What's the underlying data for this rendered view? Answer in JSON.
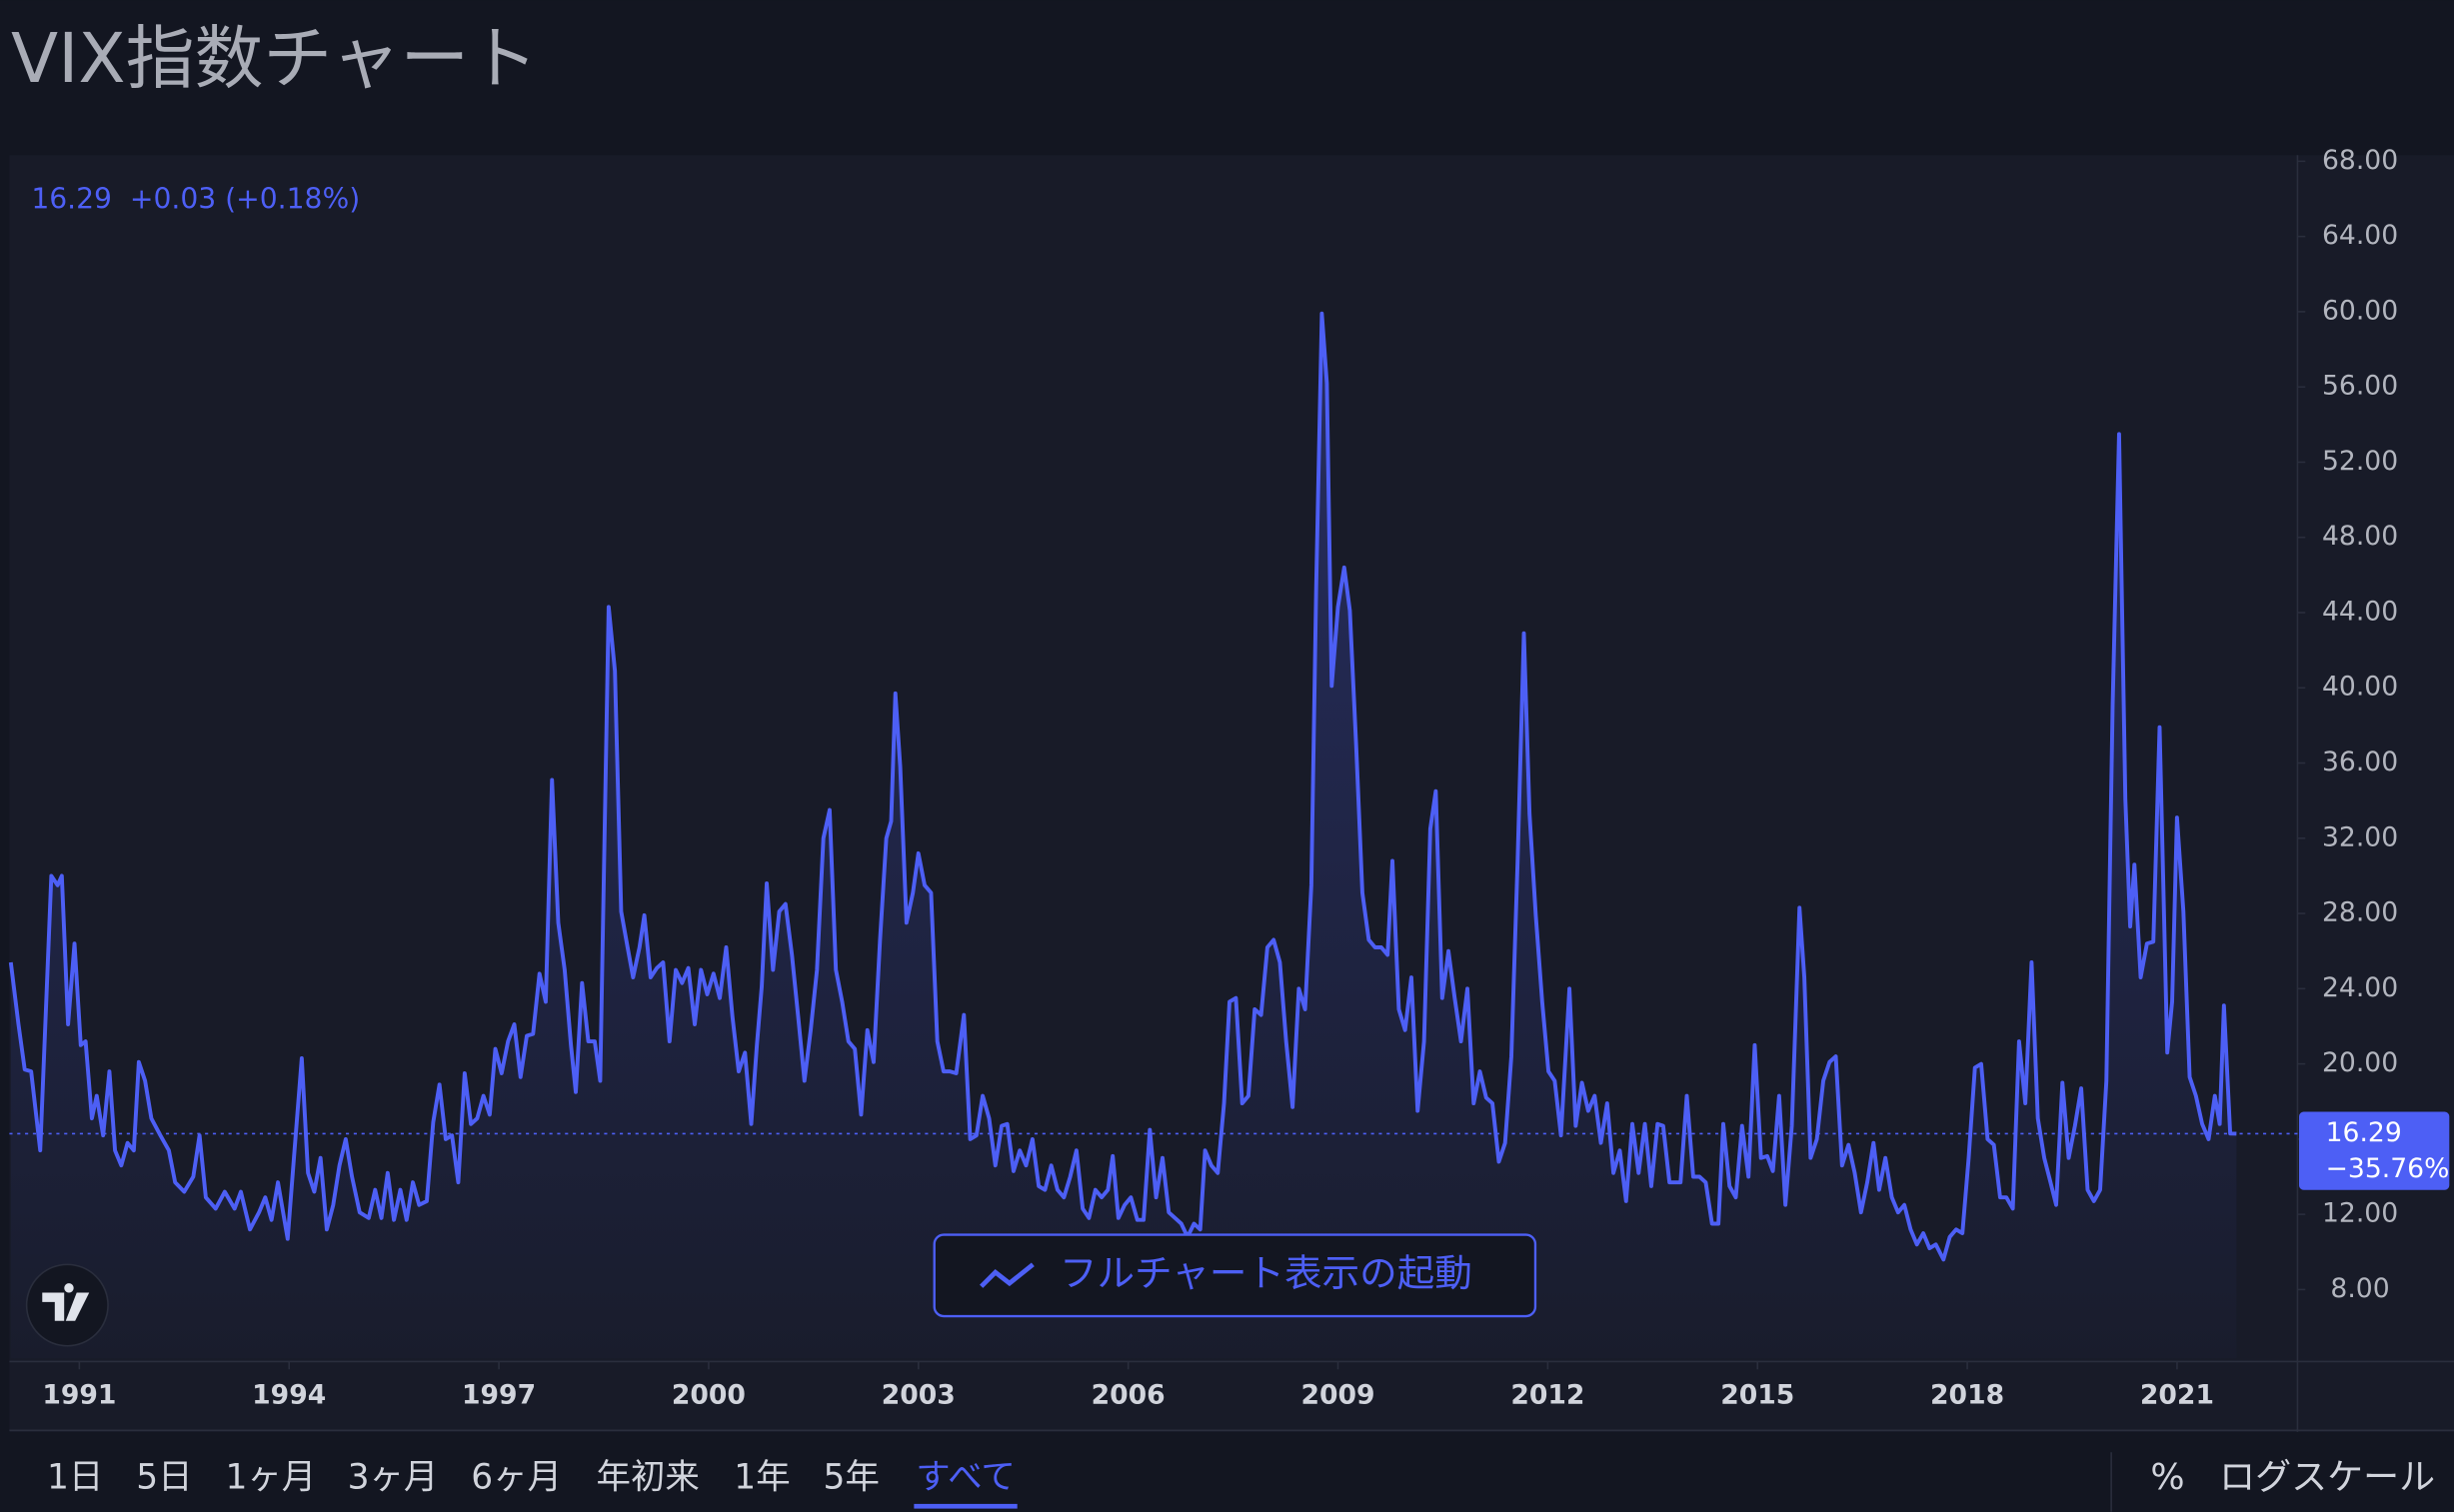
{
  "page_title": "VIX指数チャート",
  "chart_data": {
    "type": "line",
    "header_quote": "16.29  +0.03 (+0.18%)",
    "x": [
      1990.02,
      1990.13,
      1990.22,
      1990.31,
      1990.44,
      1990.6,
      1990.69,
      1990.75,
      1990.84,
      1990.93,
      1991.02,
      1991.09,
      1991.18,
      1991.25,
      1991.34,
      1991.43,
      1991.51,
      1991.6,
      1991.69,
      1991.78,
      1991.85,
      1991.94,
      1992.03,
      1992.16,
      1992.28,
      1992.37,
      1992.5,
      1992.63,
      1992.72,
      1992.81,
      1992.95,
      1993.08,
      1993.22,
      1993.31,
      1993.44,
      1993.57,
      1993.66,
      1993.75,
      1993.84,
      1993.98,
      1994.07,
      1994.18,
      1994.27,
      1994.36,
      1994.45,
      1994.54,
      1994.63,
      1994.72,
      1994.81,
      1994.9,
      1995.01,
      1995.14,
      1995.23,
      1995.32,
      1995.41,
      1995.5,
      1995.59,
      1995.68,
      1995.77,
      1995.86,
      1995.97,
      1996.06,
      1996.15,
      1996.24,
      1996.33,
      1996.42,
      1996.51,
      1996.6,
      1996.69,
      1996.78,
      1996.87,
      1996.95,
      1997.04,
      1997.13,
      1997.22,
      1997.31,
      1997.4,
      1997.49,
      1997.58,
      1997.67,
      1997.76,
      1997.85,
      1997.94,
      1998.03,
      1998.1,
      1998.19,
      1998.28,
      1998.37,
      1998.45,
      1998.57,
      1998.66,
      1998.75,
      1998.84,
      1998.92,
      1999.01,
      1999.08,
      1999.17,
      1999.26,
      1999.35,
      1999.44,
      1999.53,
      1999.62,
      1999.71,
      1999.8,
      1999.89,
      1999.98,
      2000.07,
      2000.16,
      2000.25,
      2000.34,
      2000.43,
      2000.52,
      2000.61,
      2000.69,
      2000.76,
      2000.83,
      2000.92,
      2001.01,
      2001.1,
      2001.19,
      2001.28,
      2001.37,
      2001.46,
      2001.55,
      2001.64,
      2001.73,
      2001.82,
      2001.91,
      2002.0,
      2002.09,
      2002.18,
      2002.27,
      2002.36,
      2002.45,
      2002.54,
      2002.61,
      2002.67,
      2002.74,
      2002.83,
      2002.92,
      2003.0,
      2003.09,
      2003.18,
      2003.27,
      2003.36,
      2003.45,
      2003.54,
      2003.65,
      2003.74,
      2003.83,
      2003.92,
      2004.01,
      2004.1,
      2004.19,
      2004.27,
      2004.36,
      2004.45,
      2004.54,
      2004.63,
      2004.72,
      2004.81,
      2004.9,
      2004.99,
      2005.08,
      2005.17,
      2005.26,
      2005.35,
      2005.44,
      2005.53,
      2005.62,
      2005.71,
      2005.78,
      2005.86,
      2005.95,
      2006.04,
      2006.13,
      2006.22,
      2006.31,
      2006.4,
      2006.49,
      2006.58,
      2006.67,
      2006.76,
      2006.85,
      2006.94,
      2007.03,
      2007.1,
      2007.19,
      2007.28,
      2007.37,
      2007.45,
      2007.54,
      2007.63,
      2007.72,
      2007.81,
      2007.9,
      2007.99,
      2008.08,
      2008.17,
      2008.26,
      2008.35,
      2008.44,
      2008.53,
      2008.62,
      2008.69,
      2008.77,
      2008.84,
      2008.91,
      2009.0,
      2009.09,
      2009.17,
      2009.26,
      2009.35,
      2009.44,
      2009.53,
      2009.62,
      2009.71,
      2009.78,
      2009.87,
      2009.96,
      2010.05,
      2010.14,
      2010.23,
      2010.32,
      2010.4,
      2010.49,
      2010.58,
      2010.67,
      2010.76,
      2010.85,
      2010.94,
      2011.03,
      2011.12,
      2011.21,
      2011.3,
      2011.39,
      2011.48,
      2011.57,
      2011.66,
      2011.74,
      2011.83,
      2011.92,
      2012.01,
      2012.1,
      2012.19,
      2012.31,
      2012.4,
      2012.49,
      2012.58,
      2012.67,
      2012.76,
      2012.85,
      2012.94,
      2013.03,
      2013.12,
      2013.21,
      2013.3,
      2013.39,
      2013.48,
      2013.57,
      2013.65,
      2013.74,
      2013.83,
      2013.9,
      2013.99,
      2014.08,
      2014.17,
      2014.26,
      2014.35,
      2014.44,
      2014.51,
      2014.6,
      2014.69,
      2014.78,
      2014.87,
      2014.96,
      2015.05,
      2015.14,
      2015.22,
      2015.31,
      2015.4,
      2015.49,
      2015.6,
      2015.67,
      2015.76,
      2015.85,
      2015.94,
      2016.03,
      2016.12,
      2016.21,
      2016.3,
      2016.39,
      2016.48,
      2016.57,
      2016.66,
      2016.74,
      2016.83,
      2016.92,
      2017.01,
      2017.1,
      2017.19,
      2017.28,
      2017.37,
      2017.46,
      2017.55,
      2017.66,
      2017.75,
      2017.84,
      2017.93,
      2018.02,
      2018.11,
      2018.2,
      2018.29,
      2018.38,
      2018.47,
      2018.56,
      2018.65,
      2018.74,
      2018.83,
      2018.92,
      2019.01,
      2019.1,
      2019.19,
      2019.27,
      2019.36,
      2019.45,
      2019.54,
      2019.63,
      2019.72,
      2019.81,
      2019.9,
      2019.99,
      2020.08,
      2020.17,
      2020.26,
      2020.33,
      2020.39,
      2020.48,
      2020.57,
      2020.66,
      2020.75,
      2020.86,
      2020.93,
      2021.0,
      2021.09,
      2021.18,
      2021.27,
      2021.36,
      2021.45,
      2021.54,
      2021.61,
      2021.67,
      2021.76,
      2021.85
    ],
    "series": [
      {
        "color": "#4d5ff5",
        "values": [
          25.4,
          22.1,
          19.7,
          19.6,
          15.4,
          30.0,
          29.5,
          30.0,
          22.1,
          26.4,
          21.0,
          21.2,
          17.1,
          18.3,
          16.2,
          19.6,
          15.4,
          14.6,
          15.8,
          15.4,
          20.1,
          19.1,
          17.1,
          16.2,
          15.4,
          13.7,
          13.2,
          14.0,
          16.2,
          12.9,
          12.3,
          13.2,
          12.3,
          13.2,
          11.2,
          12.1,
          12.9,
          11.7,
          13.7,
          10.7,
          15.0,
          20.3,
          14.2,
          13.2,
          15.0,
          11.2,
          12.5,
          14.6,
          16.0,
          14.0,
          12.1,
          11.8,
          13.3,
          11.8,
          14.2,
          11.7,
          13.3,
          11.7,
          13.7,
          12.5,
          12.7,
          16.9,
          18.9,
          16.0,
          16.2,
          13.7,
          19.5,
          16.8,
          17.1,
          18.3,
          17.3,
          20.8,
          19.5,
          21.2,
          22.1,
          19.3,
          21.5,
          21.6,
          24.8,
          23.3,
          35.1,
          27.5,
          25.0,
          21.0,
          18.5,
          24.3,
          21.2,
          21.2,
          19.1,
          44.3,
          40.9,
          28.1,
          26.2,
          24.6,
          26.2,
          27.9,
          24.6,
          25.1,
          25.4,
          21.2,
          25.0,
          24.3,
          25.1,
          22.1,
          25.0,
          23.7,
          24.8,
          23.5,
          26.2,
          22.5,
          19.6,
          20.6,
          16.8,
          21.0,
          24.1,
          29.6,
          25.0,
          28.1,
          28.5,
          25.8,
          22.5,
          19.1,
          21.8,
          25.0,
          32.0,
          33.5,
          25.0,
          23.3,
          21.2,
          20.8,
          17.3,
          21.8,
          20.1,
          26.6,
          32.0,
          32.9,
          39.7,
          35.8,
          27.5,
          29.1,
          31.2,
          29.5,
          29.1,
          21.2,
          19.6,
          19.6,
          19.5,
          22.6,
          16.0,
          16.2,
          18.3,
          17.1,
          14.6,
          16.7,
          16.8,
          14.3,
          15.4,
          14.6,
          16.0,
          13.5,
          13.3,
          14.6,
          13.3,
          12.9,
          14.0,
          15.4,
          12.3,
          11.8,
          13.3,
          12.9,
          13.3,
          15.1,
          11.8,
          12.5,
          12.9,
          11.7,
          11.7,
          16.5,
          12.9,
          15.0,
          12.1,
          11.8,
          11.5,
          10.8,
          11.5,
          11.2,
          15.4,
          14.6,
          14.2,
          17.9,
          23.3,
          23.5,
          17.9,
          18.3,
          22.9,
          22.6,
          26.2,
          26.6,
          25.4,
          21.2,
          17.7,
          24.0,
          22.9,
          29.5,
          45.4,
          59.9,
          56.2,
          40.1,
          44.3,
          46.4,
          44.1,
          37.0,
          29.1,
          26.6,
          26.2,
          26.2,
          25.8,
          30.8,
          22.9,
          21.8,
          24.6,
          17.5,
          21.2,
          32.5,
          34.5,
          23.5,
          26.0,
          23.5,
          21.2,
          24.0,
          17.9,
          19.6,
          18.2,
          17.9,
          14.8,
          15.8,
          20.4,
          30.8,
          42.9,
          33.3,
          27.9,
          23.3,
          19.6,
          19.1,
          16.2,
          24.0,
          16.7,
          19.0,
          17.5,
          18.3,
          15.8,
          17.9,
          14.2,
          15.4,
          12.7,
          16.8,
          14.2,
          16.8,
          13.5,
          16.8,
          16.7,
          13.7,
          13.7,
          13.7,
          18.3,
          14.0,
          14.0,
          13.7,
          11.5,
          11.5,
          16.8,
          13.5,
          12.9,
          16.7,
          14.0,
          21.0,
          15.0,
          15.1,
          14.3,
          18.3,
          12.5,
          16.7,
          28.3,
          24.6,
          15.0,
          16.0,
          19.1,
          20.1,
          20.4,
          14.6,
          15.7,
          14.2,
          12.1,
          13.7,
          15.8,
          13.3,
          15.0,
          12.9,
          12.1,
          12.5,
          11.2,
          10.4,
          11.0,
          10.2,
          10.4,
          9.6,
          10.8,
          11.2,
          11.0,
          15.0,
          19.8,
          20.0,
          16.0,
          15.7,
          12.9,
          12.9,
          12.3,
          21.2,
          17.9,
          25.4,
          17.1,
          15.0,
          13.7,
          12.5,
          19.0,
          15.0,
          16.7,
          18.7,
          13.3,
          12.7,
          13.3,
          19.1,
          39.1,
          53.5,
          34.1,
          27.3,
          30.6,
          24.6,
          26.4,
          26.5,
          37.9,
          20.6,
          23.3,
          33.1,
          28.1,
          19.3,
          18.3,
          16.8,
          16.0,
          18.3,
          16.8,
          23.1,
          16.3,
          16.29
        ]
      }
    ],
    "last_price": 16.29,
    "last_change": "−35.76%",
    "xlim": [
      1990,
      2022.7
    ],
    "xticks": [
      1991,
      1994,
      1997,
      2000,
      2003,
      2006,
      2009,
      2012,
      2015,
      2018,
      2021
    ],
    "ylim": [
      4.34,
      68.24
    ],
    "yticks": [
      {
        "value": 8,
        "label": "8.00"
      },
      {
        "value": 12,
        "label": "12.00"
      },
      {
        "value": 16,
        "label": "16.00"
      },
      {
        "value": 20,
        "label": "20.00"
      },
      {
        "value": 24,
        "label": "24.00"
      },
      {
        "value": 28,
        "label": "28.00"
      },
      {
        "value": 32,
        "label": "32.00"
      },
      {
        "value": 36,
        "label": "36.00"
      },
      {
        "value": 40,
        "label": "40.00"
      },
      {
        "value": 44,
        "label": "44.00"
      },
      {
        "value": 48,
        "label": "48.00"
      },
      {
        "value": 52,
        "label": "52.00"
      },
      {
        "value": 56,
        "label": "56.00"
      },
      {
        "value": 60,
        "label": "60.00"
      },
      {
        "value": 64,
        "label": "64.00"
      },
      {
        "value": 68,
        "label": "68.00"
      }
    ],
    "grid": false
  },
  "full_chart_button": "フルチャート表示の起動",
  "range_buttons": [
    "1日",
    "5日",
    "1ヶ月",
    "3ヶ月",
    "6ヶ月",
    "年初来",
    "1年",
    "5年",
    "すべて"
  ],
  "selected_range": 8,
  "scale_options": [
    "%",
    "ログスケール"
  ]
}
